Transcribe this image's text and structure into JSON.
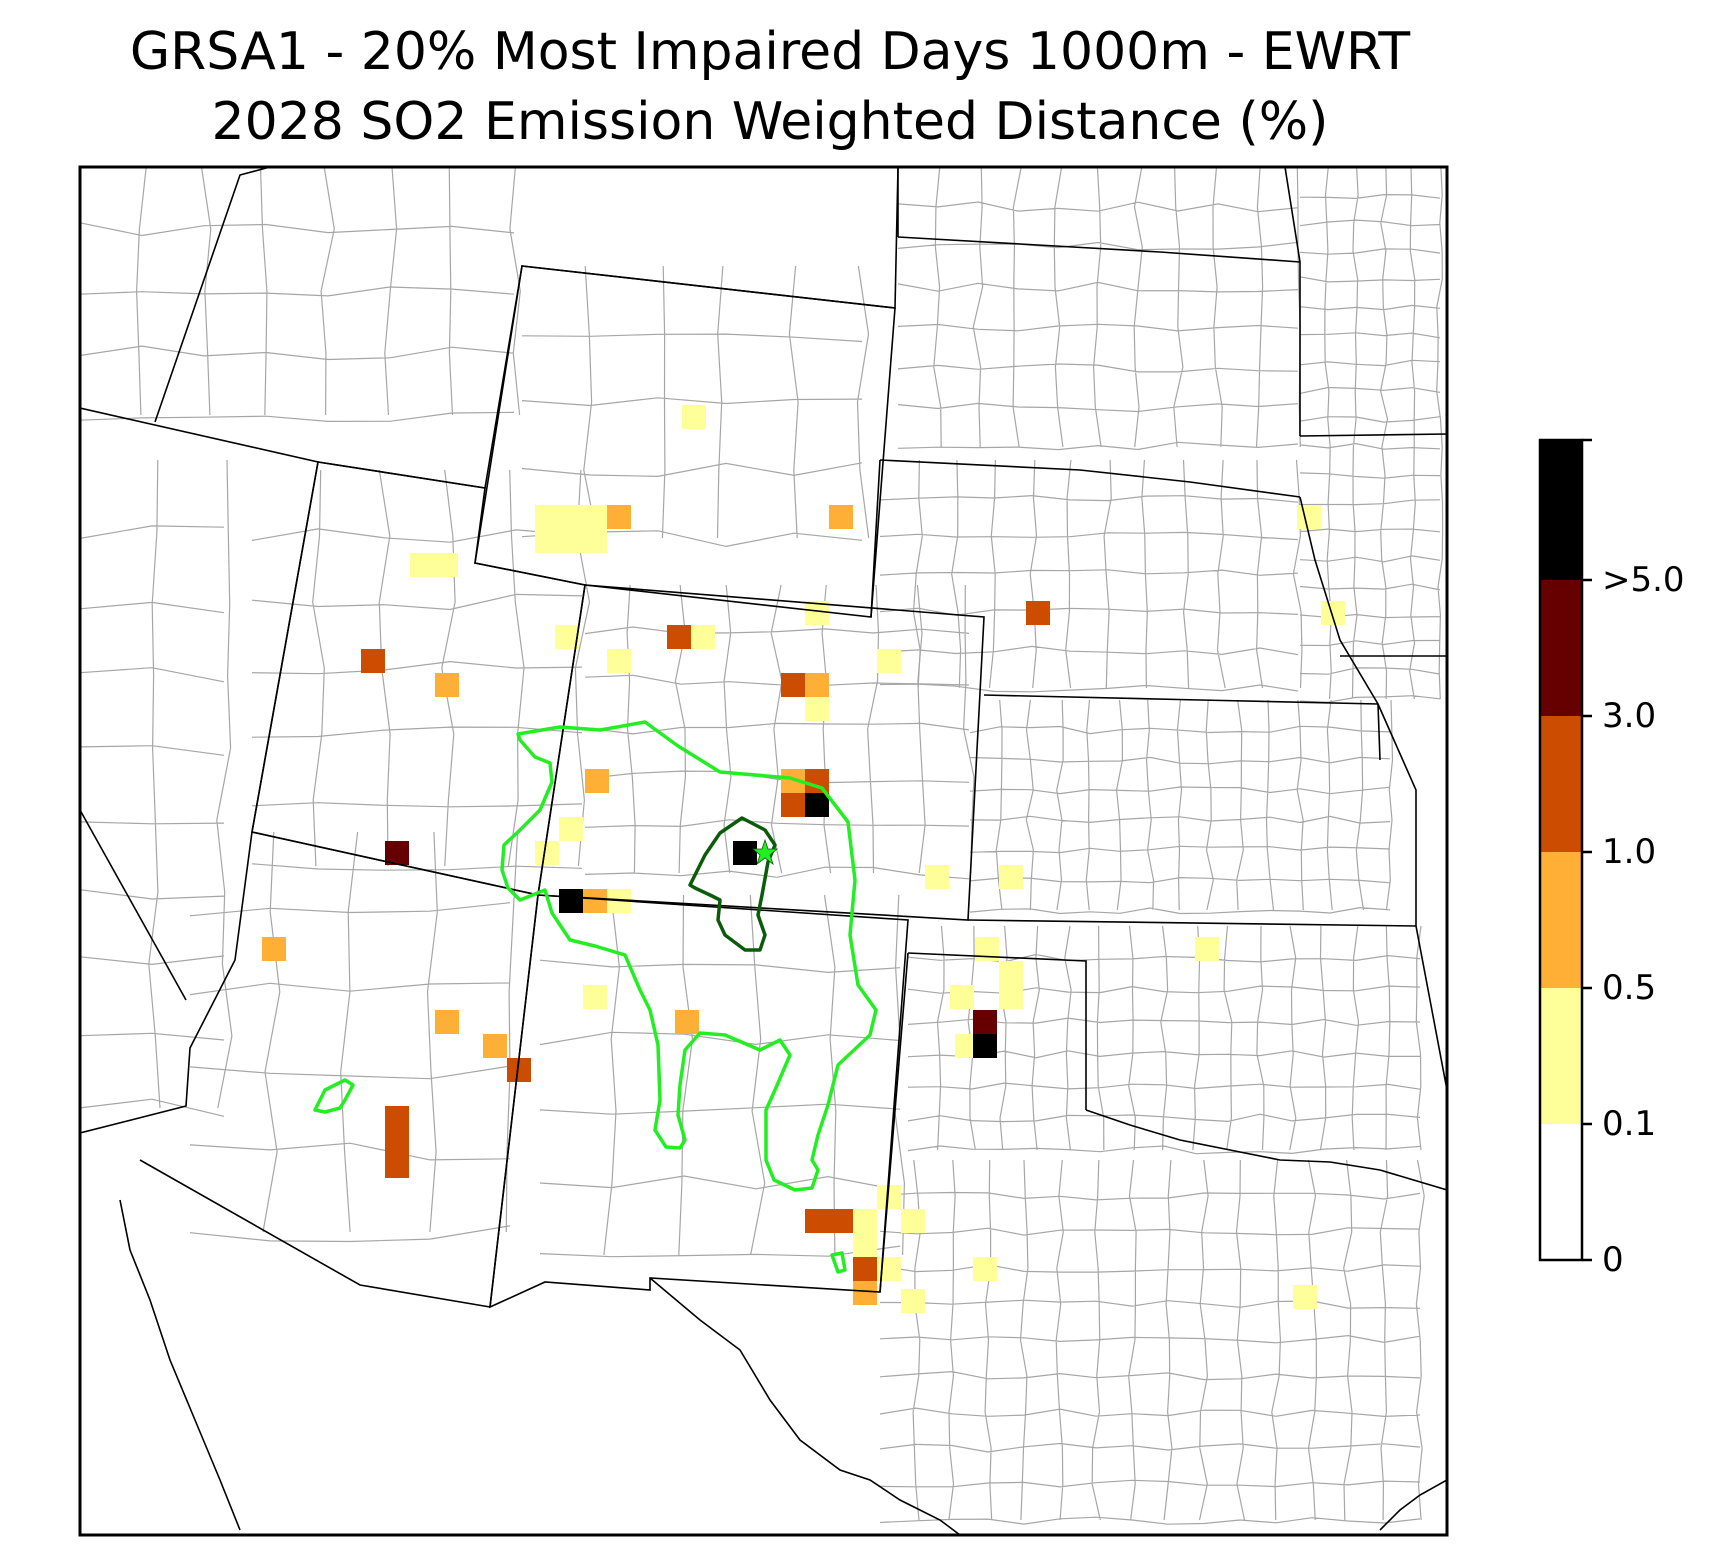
{
  "title": {
    "line1": "GRSA1 - 20% Most Impaired Days 1000m - EWRT",
    "line2": "2028 SO2 Emission Weighted Distance (%)"
  },
  "colors": {
    "frame": "#000000",
    "state_border": "#000000",
    "county_border": "#a6a6a6",
    "contour_outer": "#22ee22",
    "contour_inner": "#0a5c0a",
    "star": "#22ee22"
  },
  "legend": {
    "type": "colorbar",
    "placement": "right",
    "bins": [
      {
        "min_label": "0",
        "color": "#ffffff"
      },
      {
        "min_label": "0.1",
        "color": "#ffff99"
      },
      {
        "min_label": "0.5",
        "color": "#fdb035"
      },
      {
        "min_label": "1.0",
        "color": "#cc4c02"
      },
      {
        "min_label": "3.0",
        "color": "#660000"
      },
      {
        "min_label": ">5.0",
        "color": "#000000"
      }
    ]
  },
  "markers": [
    {
      "name": "class-i-area-star",
      "symbol": "star",
      "color": "#22ee22"
    }
  ]
}
